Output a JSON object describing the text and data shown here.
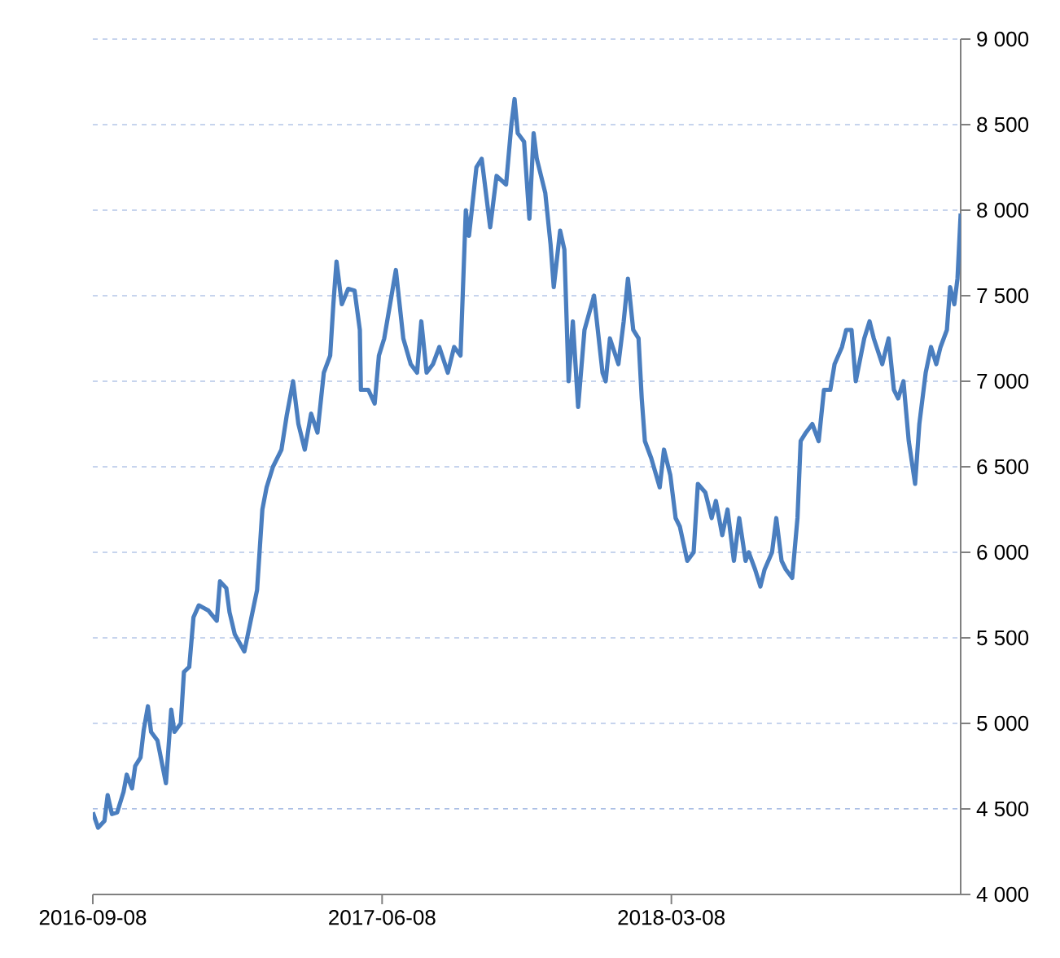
{
  "chart_data": {
    "type": "line",
    "xlim": [
      "2016-09-08",
      "2018-12-06"
    ],
    "xticks": [
      "2016-09-08",
      "2017-06-08",
      "2018-03-08"
    ],
    "ylim": [
      4000,
      9000
    ],
    "yticks": [
      {
        "value": 4000,
        "label": "4 000"
      },
      {
        "value": 4500,
        "label": "4 500"
      },
      {
        "value": 5000,
        "label": "5 000"
      },
      {
        "value": 5500,
        "label": "5 500"
      },
      {
        "value": 6000,
        "label": "6 000"
      },
      {
        "value": 6500,
        "label": "6 500"
      },
      {
        "value": 7000,
        "label": "7 000"
      },
      {
        "value": 7500,
        "label": "7 500"
      },
      {
        "value": 8000,
        "label": "8 000"
      },
      {
        "value": 8500,
        "label": "8 500"
      },
      {
        "value": 9000,
        "label": "9 000"
      }
    ],
    "grid": "y",
    "x": [
      "2016-09-08",
      "2016-09-13",
      "2016-09-19",
      "2016-09-22",
      "2016-09-26",
      "2016-10-01",
      "2016-10-07",
      "2016-10-10",
      "2016-10-15",
      "2016-10-18",
      "2016-10-23",
      "2016-10-26",
      "2016-10-30",
      "2016-11-02",
      "2016-11-08",
      "2016-11-16",
      "2016-11-21",
      "2016-11-24",
      "2016-11-30",
      "2016-12-03",
      "2016-12-08",
      "2016-12-12",
      "2016-12-17",
      "2016-12-26",
      "2017-01-03",
      "2017-01-06",
      "2017-01-12",
      "2017-01-15",
      "2017-01-20",
      "2017-01-29",
      "2017-02-04",
      "2017-02-10",
      "2017-02-15",
      "2017-02-19",
      "2017-02-25",
      "2017-03-05",
      "2017-03-10",
      "2017-03-16",
      "2017-03-21",
      "2017-03-27",
      "2017-04-02",
      "2017-04-08",
      "2017-04-14",
      "2017-04-20",
      "2017-04-23",
      "2017-04-26",
      "2017-05-01",
      "2017-05-07",
      "2017-05-13",
      "2017-05-18",
      "2017-05-19",
      "2017-05-26",
      "2017-06-01",
      "2017-06-05",
      "2017-06-10",
      "2017-06-21",
      "2017-06-28",
      "2017-07-05",
      "2017-07-11",
      "2017-07-15",
      "2017-07-20",
      "2017-07-26",
      "2017-08-01",
      "2017-08-09",
      "2017-08-15",
      "2017-08-21",
      "2017-08-26",
      "2017-08-29",
      "2017-09-05",
      "2017-09-10",
      "2017-09-18",
      "2017-09-24",
      "2017-10-03",
      "2017-10-08",
      "2017-10-11",
      "2017-10-14",
      "2017-10-20",
      "2017-10-25",
      "2017-10-29",
      "2017-11-01",
      "2017-11-09",
      "2017-11-14",
      "2017-11-17",
      "2017-11-23",
      "2017-11-27",
      "2017-12-01",
      "2017-12-05",
      "2017-12-10",
      "2017-12-16",
      "2017-12-25",
      "2018-01-02",
      "2018-01-05",
      "2018-01-09",
      "2018-01-17",
      "2018-01-22",
      "2018-01-26",
      "2018-01-31",
      "2018-02-05",
      "2018-02-08",
      "2018-02-11",
      "2018-02-17",
      "2018-02-25",
      "2018-03-01",
      "2018-03-07",
      "2018-03-12",
      "2018-03-16",
      "2018-03-23",
      "2018-03-29",
      "2018-04-02",
      "2018-04-09",
      "2018-04-15",
      "2018-04-19",
      "2018-04-25",
      "2018-04-30",
      "2018-05-06",
      "2018-05-11",
      "2018-05-17",
      "2018-05-20",
      "2018-05-26",
      "2018-05-31",
      "2018-06-04",
      "2018-06-11",
      "2018-06-15",
      "2018-06-20",
      "2018-06-24",
      "2018-06-30",
      "2018-07-05",
      "2018-07-08",
      "2018-07-13",
      "2018-07-19",
      "2018-07-25",
      "2018-07-30",
      "2018-08-05",
      "2018-08-09",
      "2018-08-16",
      "2018-08-20",
      "2018-08-25",
      "2018-08-29",
      "2018-09-06",
      "2018-09-11",
      "2018-09-15",
      "2018-09-23",
      "2018-09-29",
      "2018-10-04",
      "2018-10-08",
      "2018-10-13",
      "2018-10-18",
      "2018-10-24",
      "2018-10-28",
      "2018-11-03",
      "2018-11-08",
      "2018-11-13",
      "2018-11-17",
      "2018-11-23",
      "2018-11-26",
      "2018-11-30",
      "2018-12-03",
      "2018-12-06"
    ],
    "series": [
      {
        "color": "#4a7ebf",
        "values": [
          4480,
          4390,
          4430,
          4580,
          4470,
          4480,
          4600,
          4700,
          4620,
          4750,
          4800,
          4960,
          5100,
          4950,
          4900,
          4650,
          5080,
          4950,
          5000,
          5300,
          5330,
          5620,
          5690,
          5660,
          5600,
          5830,
          5790,
          5650,
          5520,
          5420,
          5600,
          5780,
          6250,
          6380,
          6500,
          6600,
          6800,
          7000,
          6750,
          6600,
          6810,
          6700,
          7050,
          7150,
          7450,
          7700,
          7450,
          7540,
          7530,
          7300,
          6950,
          6950,
          6870,
          7150,
          7250,
          7650,
          7250,
          7100,
          7050,
          7350,
          7050,
          7100,
          7200,
          7050,
          7200,
          7150,
          8000,
          7850,
          8250,
          8300,
          7900,
          8200,
          8150,
          8500,
          8650,
          8450,
          8400,
          7950,
          8450,
          8300,
          8100,
          7800,
          7550,
          7880,
          7770,
          7000,
          7350,
          6850,
          7300,
          7500,
          7050,
          7000,
          7250,
          7100,
          7350,
          7600,
          7300,
          7250,
          6900,
          6650,
          6550,
          6380,
          6600,
          6450,
          6200,
          6150,
          5950,
          6000,
          6400,
          6350,
          6200,
          6300,
          6100,
          6250,
          5950,
          6200,
          5950,
          6000,
          5900,
          5800,
          5900,
          6000,
          6200,
          5950,
          5900,
          5850,
          6200,
          6650,
          6700,
          6750,
          6650,
          6950,
          6950,
          7100,
          7200,
          7300,
          7300,
          7000,
          7250,
          7350,
          7250,
          7100,
          7250,
          6950,
          6900,
          7000,
          6650,
          6400,
          6750,
          7050,
          7200,
          7100,
          7200,
          7300,
          7550,
          7450,
          7600,
          7980
        ]
      }
    ]
  }
}
